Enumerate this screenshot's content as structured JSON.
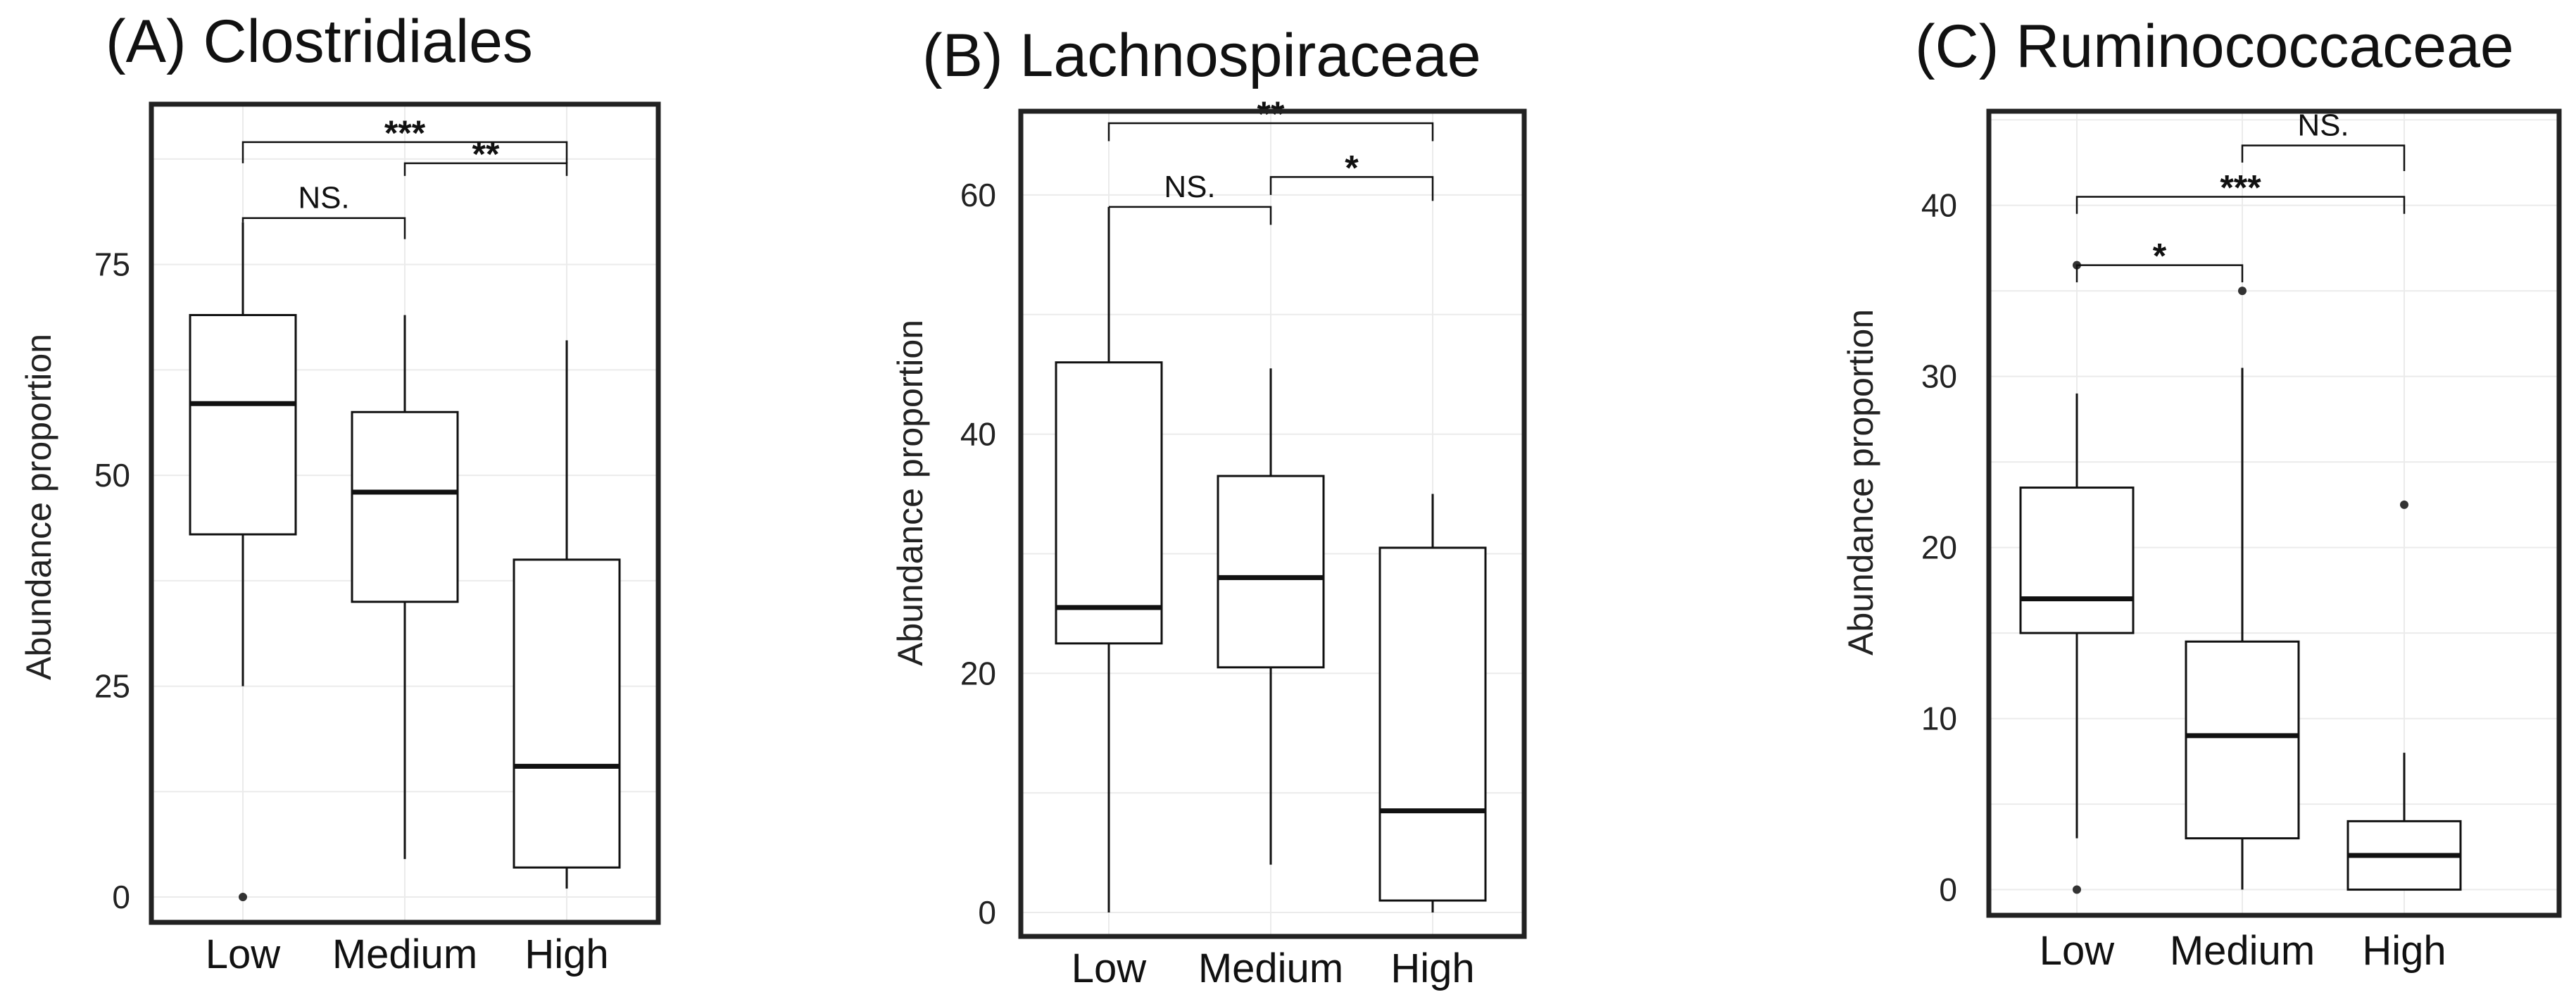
{
  "chart_data": [
    {
      "type": "box",
      "title": "(A) Clostridiales",
      "ylabel": "Abundance proportion",
      "categories": [
        "Low",
        "Medium",
        "High"
      ],
      "ylim": [
        -3,
        94
      ],
      "yticks": [
        0,
        25,
        50,
        75
      ],
      "grid": true,
      "boxes": [
        {
          "category": "Low",
          "whisker_low": 25,
          "q1": 43,
          "median": 58.5,
          "q3": 69,
          "whisker_high": 80,
          "outliers": [
            0
          ]
        },
        {
          "category": "Medium",
          "whisker_low": 4.5,
          "q1": 35,
          "median": 48,
          "q3": 57.5,
          "whisker_high": 69,
          "outliers": []
        },
        {
          "category": "High",
          "whisker_low": 1,
          "q1": 3.5,
          "median": 15.5,
          "q3": 40,
          "whisker_high": 66,
          "outliers": []
        }
      ],
      "significance": [
        {
          "from": "Low",
          "to": "Medium",
          "label": "NS.",
          "y": 80.5,
          "drop_left": 80,
          "drop_right": 78
        },
        {
          "from": "Medium",
          "to": "High",
          "label": "**",
          "y": 87,
          "drop_left": 85.5,
          "drop_right": 85.5
        },
        {
          "from": "Low",
          "to": "High",
          "label": "***",
          "y": 89.5,
          "drop_left": 87,
          "drop_right": 87
        }
      ]
    },
    {
      "type": "box",
      "title": "(B) Lachnospiraceae",
      "ylabel": "Abundance proportion",
      "categories": [
        "Low",
        "Medium",
        "High"
      ],
      "ylim": [
        -2,
        67
      ],
      "yticks": [
        0,
        20,
        40,
        60
      ],
      "grid": true,
      "boxes": [
        {
          "category": "Low",
          "whisker_low": 0,
          "q1": 22.5,
          "median": 25.5,
          "q3": 46,
          "whisker_high": 59,
          "outliers": []
        },
        {
          "category": "Medium",
          "whisker_low": 4,
          "q1": 20.5,
          "median": 28,
          "q3": 36.5,
          "whisker_high": 45.5,
          "outliers": []
        },
        {
          "category": "High",
          "whisker_low": 0,
          "q1": 1,
          "median": 8.5,
          "q3": 30.5,
          "whisker_high": 35,
          "outliers": []
        }
      ],
      "significance": [
        {
          "from": "Low",
          "to": "Medium",
          "label": "NS.",
          "y": 59,
          "drop_left": 59,
          "drop_right": 57.5
        },
        {
          "from": "Medium",
          "to": "High",
          "label": "*",
          "y": 61.5,
          "drop_left": 60,
          "drop_right": 59.5
        },
        {
          "from": "Low",
          "to": "High",
          "label": "**",
          "y": 66,
          "drop_left": 64.5,
          "drop_right": 64.5
        }
      ]
    },
    {
      "type": "box",
      "title": "(C) Ruminococcaceae",
      "ylabel": "Abundance proportion",
      "categories": [
        "Low",
        "Medium",
        "High"
      ],
      "ylim": [
        -1.5,
        45.5
      ],
      "yticks": [
        0,
        10,
        20,
        30,
        40
      ],
      "grid": true,
      "boxes": [
        {
          "category": "Low",
          "whisker_low": 3,
          "q1": 15,
          "median": 17,
          "q3": 23.5,
          "whisker_high": 29,
          "outliers": [
            36.5,
            0
          ]
        },
        {
          "category": "Medium",
          "whisker_low": 0,
          "q1": 3,
          "median": 9,
          "q3": 14.5,
          "whisker_high": 30.5,
          "outliers": [
            35
          ]
        },
        {
          "category": "High",
          "whisker_low": 0,
          "q1": 0,
          "median": 2,
          "q3": 4,
          "whisker_high": 8,
          "outliers": [
            22.5
          ]
        }
      ],
      "significance": [
        {
          "from": "Low",
          "to": "Medium",
          "label": "*",
          "y": 36.5,
          "drop_left": 35.5,
          "drop_right": 35.5
        },
        {
          "from": "Low",
          "to": "High",
          "label": "***",
          "y": 40.5,
          "drop_left": 39.5,
          "drop_right": 39.5
        },
        {
          "from": "Medium",
          "to": "High",
          "label": "NS.",
          "y": 43.5,
          "drop_left": 42.5,
          "drop_right": 42
        }
      ]
    }
  ]
}
